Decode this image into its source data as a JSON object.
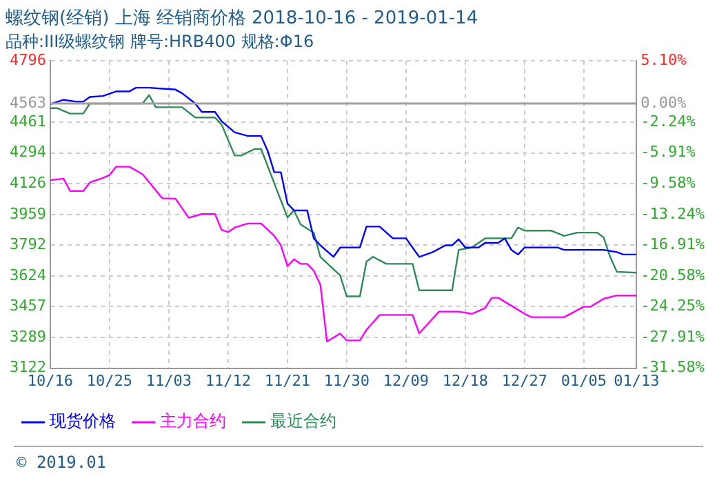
{
  "chart_data": {
    "type": "line",
    "title": "螺纹钢(经销) 上海 经销商价格 2018-10-16 - 2019-01-14",
    "subtitle": "品种:III级螺纹钢 牌号:HRB400 规格:Φ16",
    "annotations": [
      "© 2019.01"
    ],
    "xlim": [
      "2018-10-16",
      "2019-01-13"
    ],
    "xticks": [
      {
        "value": "2018-10-16",
        "label": "10/16"
      },
      {
        "value": "2018-10-25",
        "label": "10/25"
      },
      {
        "value": "2018-11-03",
        "label": "11/03"
      },
      {
        "value": "2018-11-12",
        "label": "11/12"
      },
      {
        "value": "2018-11-21",
        "label": "11/21"
      },
      {
        "value": "2018-11-30",
        "label": "11/30"
      },
      {
        "value": "2018-12-09",
        "label": "12/09"
      },
      {
        "value": "2018-12-18",
        "label": "12/18"
      },
      {
        "value": "2018-12-27",
        "label": "12/27"
      },
      {
        "value": "2019-01-05",
        "label": "01/05"
      },
      {
        "value": "2019-01-13",
        "label": "01/13"
      }
    ],
    "ylim": [
      3122,
      4796
    ],
    "yticks": [
      3122,
      3289,
      3457,
      3624,
      3792,
      3959,
      4126,
      4294,
      4461,
      4563,
      4796
    ],
    "y2lim": [
      -31.58,
      5.1
    ],
    "y2ticks": [
      {
        "value": -31.58,
        "label": "-31.58%"
      },
      {
        "value": -27.91,
        "label": "-27.91%"
      },
      {
        "value": -24.25,
        "label": "-24.25%"
      },
      {
        "value": -20.58,
        "label": "-20.58%"
      },
      {
        "value": -16.91,
        "label": "-16.91%"
      },
      {
        "value": -13.24,
        "label": "-13.24%"
      },
      {
        "value": -9.58,
        "label": "-9.58%"
      },
      {
        "value": -5.91,
        "label": "-5.91%"
      },
      {
        "value": -2.24,
        "label": "-2.24%"
      },
      {
        "value": 0,
        "label": "0.00%"
      },
      {
        "value": 5.1,
        "label": "5.10%"
      }
    ],
    "ref_lines": [
      {
        "axis": "y",
        "value": 4563,
        "color": "#a0a0a0"
      }
    ],
    "grid": true,
    "legend": "bottom",
    "marker": "none",
    "line_style": "solid",
    "series": [
      {
        "name": "现货价格",
        "color": "#0000ff",
        "x": [
          "2018-10-16",
          "2018-10-18",
          "2018-10-20",
          "2018-10-21",
          "2018-10-22",
          "2018-10-24",
          "2018-10-26",
          "2018-10-28",
          "2018-10-29",
          "2018-10-31",
          "2018-11-02",
          "2018-11-04",
          "2018-11-05",
          "2018-11-07",
          "2018-11-08",
          "2018-11-10",
          "2018-11-11",
          "2018-11-13",
          "2018-11-15",
          "2018-11-17",
          "2018-11-18",
          "2018-11-19",
          "2018-11-20",
          "2018-11-21",
          "2018-11-22",
          "2018-11-24",
          "2018-11-25",
          "2018-11-26",
          "2018-11-28",
          "2018-11-29",
          "2018-12-02",
          "2018-12-03",
          "2018-12-05",
          "2018-12-07",
          "2018-12-09",
          "2018-12-11",
          "2018-12-13",
          "2018-12-15",
          "2018-12-16",
          "2018-12-17",
          "2018-12-18",
          "2018-12-20",
          "2018-12-21",
          "2018-12-23",
          "2018-12-24",
          "2018-12-25",
          "2018-12-26",
          "2018-12-27",
          "2019-01-01",
          "2019-01-02",
          "2019-01-08",
          "2019-01-10",
          "2019-01-11",
          "2019-01-13"
        ],
        "values": [
          4560,
          4583,
          4573,
          4573,
          4599,
          4604,
          4629,
          4629,
          4649,
          4649,
          4644,
          4639,
          4619,
          4563,
          4517,
          4517,
          4467,
          4406,
          4386,
          4386,
          4305,
          4189,
          4189,
          4019,
          3981,
          3981,
          3829,
          3791,
          3728,
          3779,
          3779,
          3893,
          3893,
          3829,
          3829,
          3728,
          3753,
          3791,
          3791,
          3824,
          3779,
          3779,
          3804,
          3804,
          3829,
          3766,
          3741,
          3779,
          3779,
          3766,
          3766,
          3754,
          3741,
          3741
        ]
      },
      {
        "name": "主力合约",
        "color": "#ff00ff",
        "x": [
          "2018-10-16",
          "2018-10-18",
          "2018-10-19",
          "2018-10-21",
          "2018-10-22",
          "2018-10-24",
          "2018-10-25",
          "2018-10-26",
          "2018-10-28",
          "2018-10-30",
          "2018-11-02",
          "2018-11-04",
          "2018-11-06",
          "2018-11-08",
          "2018-11-10",
          "2018-11-11",
          "2018-11-12",
          "2018-11-13",
          "2018-11-15",
          "2018-11-17",
          "2018-11-19",
          "2018-11-20",
          "2018-11-21",
          "2018-11-22",
          "2018-11-23",
          "2018-11-24",
          "2018-11-25",
          "2018-11-26",
          "2018-11-27",
          "2018-11-29",
          "2018-11-30",
          "2018-12-02",
          "2018-12-03",
          "2018-12-05",
          "2018-12-10",
          "2018-12-11",
          "2018-12-14",
          "2018-12-17",
          "2018-12-19",
          "2018-12-21",
          "2018-12-22",
          "2018-12-23",
          "2018-12-25",
          "2018-12-27",
          "2018-12-28",
          "2019-01-02",
          "2019-01-05",
          "2019-01-06",
          "2019-01-08",
          "2019-01-10",
          "2019-01-13"
        ],
        "values": [
          4146,
          4154,
          4087,
          4087,
          4133,
          4158,
          4174,
          4219,
          4219,
          4178,
          4047,
          4045,
          3941,
          3961,
          3961,
          3875,
          3863,
          3888,
          3910,
          3910,
          3842,
          3791,
          3677,
          3715,
          3690,
          3690,
          3652,
          3576,
          3267,
          3311,
          3273,
          3273,
          3331,
          3412,
          3412,
          3311,
          3430,
          3430,
          3418,
          3449,
          3505,
          3505,
          3462,
          3418,
          3400,
          3400,
          3457,
          3457,
          3500,
          3518,
          3518
        ]
      },
      {
        "name": "最近合约",
        "color": "#2e8b57",
        "x": [
          "2018-10-16",
          "2018-10-17",
          "2018-10-19",
          "2018-10-21",
          "2018-10-22",
          "2018-10-30",
          "2018-10-31",
          "2018-11-01",
          "2018-11-05",
          "2018-11-07",
          "2018-11-10",
          "2018-11-11",
          "2018-11-13",
          "2018-11-14",
          "2018-11-16",
          "2018-11-17",
          "2018-11-21",
          "2018-11-22",
          "2018-11-23",
          "2018-11-25",
          "2018-11-26",
          "2018-11-29",
          "2018-11-30",
          "2018-12-02",
          "2018-12-03",
          "2018-12-04",
          "2018-12-06",
          "2018-12-10",
          "2018-12-11",
          "2018-12-16",
          "2018-12-17",
          "2018-12-19",
          "2018-12-21",
          "2018-12-25",
          "2018-12-26",
          "2018-12-27",
          "2018-12-31",
          "2019-01-02",
          "2019-01-04",
          "2019-01-07",
          "2019-01-08",
          "2019-01-09",
          "2019-01-10",
          "2019-01-13"
        ],
        "values": [
          4538,
          4538,
          4508,
          4508,
          4563,
          4563,
          4609,
          4543,
          4543,
          4487,
          4487,
          4449,
          4280,
          4280,
          4315,
          4315,
          3943,
          3981,
          3905,
          3860,
          3728,
          3627,
          3513,
          3513,
          3703,
          3728,
          3690,
          3690,
          3546,
          3546,
          3766,
          3779,
          3829,
          3829,
          3888,
          3871,
          3871,
          3842,
          3860,
          3860,
          3834,
          3728,
          3647,
          3642
        ]
      }
    ]
  }
}
